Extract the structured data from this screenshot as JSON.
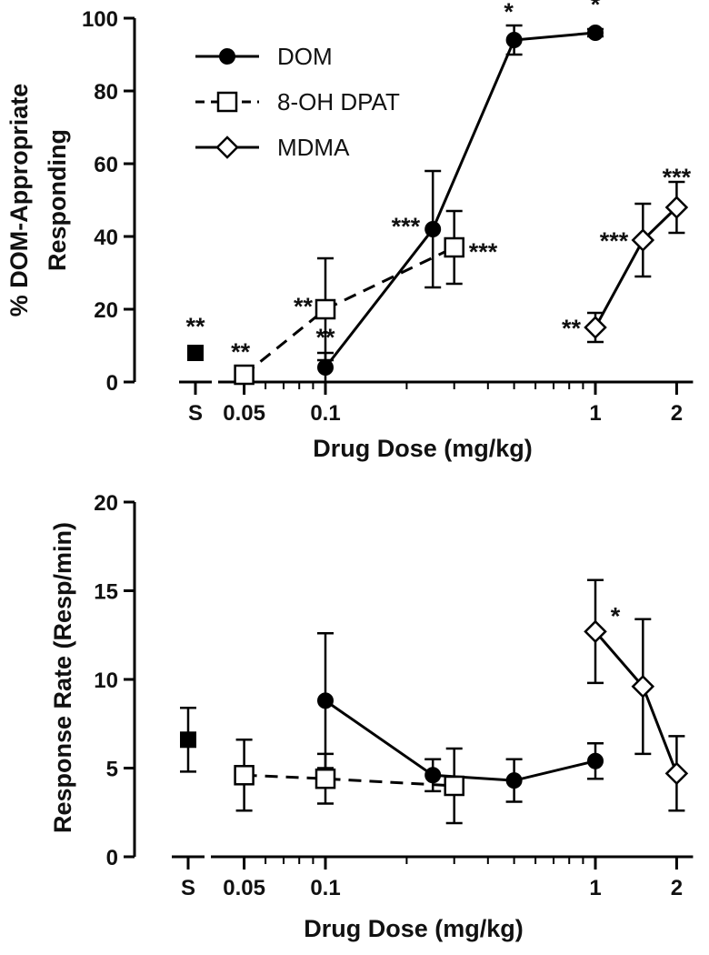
{
  "chart_data": [
    {
      "type": "line",
      "panel": "top",
      "xlabel": "Drug Dose (mg/kg)",
      "ylabel": [
        "% DOM-Appropriate",
        "Responding"
      ],
      "ylim": [
        0,
        100
      ],
      "yticks": [
        0,
        20,
        40,
        60,
        80,
        100
      ],
      "x_scale": "log",
      "xlim": [
        0.03,
        2.3
      ],
      "xticks": [
        {
          "label": "S",
          "pos": "saline"
        },
        {
          "label": "0.05",
          "value": 0.05
        },
        {
          "label": "0.1",
          "value": 0.1
        },
        {
          "label": "1",
          "value": 1
        },
        {
          "label": "2",
          "value": 2
        }
      ],
      "legend": {
        "position": "top-left",
        "entries": [
          "DOM",
          "8-OH DPAT",
          "MDMA"
        ]
      },
      "saline": {
        "y": 8,
        "err": 0,
        "annotation": "**"
      },
      "series": [
        {
          "name": "DOM",
          "marker": "filled-circle",
          "line": "solid",
          "points": [
            {
              "x": 0.1,
              "y": 4,
              "err": 4,
              "annotation": "**"
            },
            {
              "x": 0.25,
              "y": 42,
              "err": 16,
              "annotation": "***"
            },
            {
              "x": 0.5,
              "y": 94,
              "err": 4,
              "annotation": "*"
            },
            {
              "x": 1,
              "y": 96,
              "err": 1,
              "annotation": "*"
            }
          ]
        },
        {
          "name": "8-OH DPAT",
          "marker": "open-square",
          "line": "dashed",
          "points": [
            {
              "x": 0.05,
              "y": 2,
              "err": 0,
              "annotation": "**"
            },
            {
              "x": 0.1,
              "y": 20,
              "err": 14,
              "annotation": "**"
            },
            {
              "x": 0.3,
              "y": 37,
              "err": 10,
              "annotation": "***"
            }
          ]
        },
        {
          "name": "MDMA",
          "marker": "open-diamond",
          "line": "solid",
          "points": [
            {
              "x": 1,
              "y": 15,
              "err": 4,
              "annotation": "**"
            },
            {
              "x": 1.5,
              "y": 39,
              "err": 10,
              "annotation": "***"
            },
            {
              "x": 2,
              "y": 48,
              "err": 7,
              "annotation": "***"
            }
          ]
        }
      ]
    },
    {
      "type": "line",
      "panel": "bottom",
      "xlabel": "Drug Dose (mg/kg)",
      "ylabel": [
        "Response Rate (Resp/min)"
      ],
      "ylim": [
        0,
        20
      ],
      "yticks": [
        0,
        5,
        10,
        15,
        20
      ],
      "x_scale": "log",
      "xlim": [
        0.03,
        2.3
      ],
      "xticks": [
        {
          "label": "S",
          "pos": "saline"
        },
        {
          "label": "0.05",
          "value": 0.05
        },
        {
          "label": "0.1",
          "value": 0.1
        },
        {
          "label": "1",
          "value": 1
        },
        {
          "label": "2",
          "value": 2
        }
      ],
      "saline": {
        "y": 6.6,
        "err": 1.8,
        "annotation": ""
      },
      "series": [
        {
          "name": "DOM",
          "marker": "filled-circle",
          "line": "solid",
          "points": [
            {
              "x": 0.1,
              "y": 8.8,
              "err": 3.8
            },
            {
              "x": 0.25,
              "y": 4.6,
              "err": 0.9
            },
            {
              "x": 0.5,
              "y": 4.3,
              "err": 1.2
            },
            {
              "x": 1,
              "y": 5.4,
              "err": 1.0
            }
          ]
        },
        {
          "name": "8-OH DPAT",
          "marker": "open-square",
          "line": "dashed",
          "points": [
            {
              "x": 0.05,
              "y": 4.6,
              "err": 2.0
            },
            {
              "x": 0.1,
              "y": 4.4,
              "err": 1.4
            },
            {
              "x": 0.3,
              "y": 4.0,
              "err": 2.1
            }
          ]
        },
        {
          "name": "MDMA",
          "marker": "open-diamond",
          "line": "solid",
          "points": [
            {
              "x": 1,
              "y": 12.7,
              "err": 2.9,
              "annotation": "*"
            },
            {
              "x": 1.5,
              "y": 9.6,
              "err": 3.8
            },
            {
              "x": 2,
              "y": 4.7,
              "err": 2.1
            }
          ]
        }
      ]
    }
  ]
}
